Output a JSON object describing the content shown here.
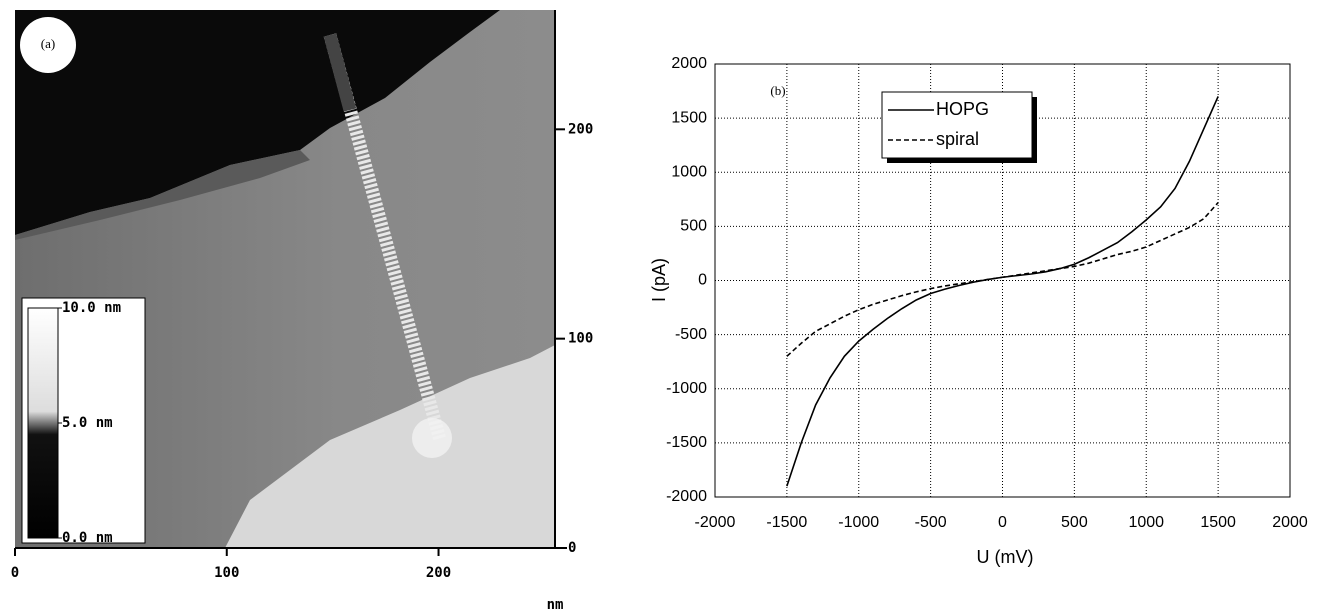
{
  "chart_data": [
    {
      "type": "image",
      "label": "(a)",
      "x_label": "nm",
      "xlim": [
        0,
        255
      ],
      "ylim": [
        0,
        257
      ],
      "xticks": [
        0,
        100,
        200
      ],
      "yticks": [
        0,
        100,
        200
      ],
      "colorbar": {
        "lim": [
          0,
          10
        ],
        "ticks": [
          {
            "value": 10,
            "label": "10.0 nm"
          },
          {
            "value": 5,
            "label": "5.0 nm"
          },
          {
            "value": 0,
            "label": "0.0 nm"
          }
        ]
      }
    },
    {
      "type": "line",
      "label": "(b)",
      "x_label": "U (mV)",
      "y_label": "I (pA)",
      "x": [
        -1500,
        -1400,
        -1300,
        -1200,
        -1100,
        -1000,
        -900,
        -800,
        -700,
        -600,
        -500,
        -400,
        -300,
        -200,
        -100,
        0,
        100,
        200,
        300,
        400,
        500,
        600,
        700,
        800,
        900,
        1000,
        1100,
        1200,
        1300,
        1400,
        1500
      ],
      "series": [
        {
          "name": "HOPG",
          "color": "#000000",
          "linestyle": "solid",
          "values": [
            -1900,
            -1500,
            -1150,
            -900,
            -700,
            -560,
            -450,
            -350,
            -260,
            -180,
            -120,
            -80,
            -45,
            -15,
            10,
            30,
            45,
            60,
            80,
            110,
            150,
            210,
            280,
            350,
            450,
            560,
            680,
            850,
            1100,
            1400,
            1700
          ]
        },
        {
          "name": "spiral",
          "color": "#000000",
          "linestyle": "dashed",
          "values": [
            -700,
            -580,
            -470,
            -400,
            -330,
            -270,
            -220,
            -180,
            -140,
            -105,
            -75,
            -50,
            -30,
            -10,
            10,
            30,
            50,
            70,
            90,
            110,
            130,
            160,
            200,
            240,
            270,
            310,
            370,
            430,
            490,
            570,
            720
          ]
        }
      ],
      "xlim": [
        -2000,
        2000
      ],
      "ylim": [
        -2000,
        2000
      ],
      "xticks": [
        -2000,
        -1500,
        -1000,
        -500,
        0,
        500,
        1000,
        1500,
        2000
      ],
      "yticks": [
        -2000,
        -1500,
        -1000,
        -500,
        0,
        500,
        1000,
        1500,
        2000
      ],
      "grid": true,
      "legend": "upper left"
    }
  ]
}
